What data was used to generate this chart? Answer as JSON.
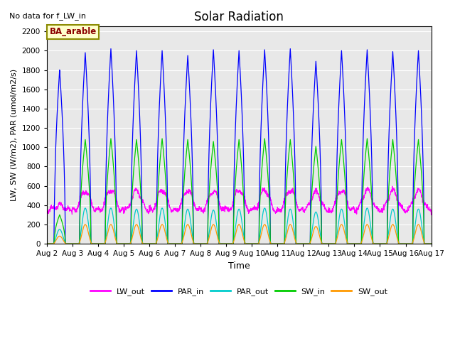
{
  "title": "Solar Radiation",
  "xlabel": "Time",
  "ylabel": "LW, SW (W/m2), PAR (umol/m2/s)",
  "note": "No data for f_LW_in",
  "legend_label": "BA_arable",
  "xmin_day": 2,
  "xmax_day": 17,
  "ylim": [
    0,
    2250
  ],
  "yticks": [
    0,
    200,
    400,
    600,
    800,
    1000,
    1200,
    1400,
    1600,
    1800,
    2000,
    2200
  ],
  "xtick_days": [
    2,
    3,
    4,
    5,
    6,
    7,
    8,
    9,
    10,
    11,
    12,
    13,
    14,
    15,
    16,
    17
  ],
  "xtick_labels": [
    "Aug 2",
    "Aug 3",
    "Aug 4",
    "Aug 5",
    "Aug 6",
    "Aug 7",
    "Aug 8",
    "Aug 9",
    "Aug 10",
    "Aug 11",
    "Aug 12",
    "Aug 13",
    "Aug 14",
    "Aug 15",
    "Aug 16",
    "Aug 17"
  ],
  "colors": {
    "LW_out": "#ff00ff",
    "PAR_in": "#0000ff",
    "PAR_out": "#00cccc",
    "SW_in": "#00cc00",
    "SW_out": "#ff9900"
  },
  "bg_color": "#e8e8e8",
  "grid_color": "#ffffff",
  "par_in_peaks": [
    1800,
    1980,
    2020,
    2000,
    2000,
    1950,
    2010,
    2000,
    2010,
    2020,
    1890,
    2000,
    2010,
    1990,
    2000
  ],
  "sw_in_peaks": [
    300,
    1080,
    1090,
    1080,
    1090,
    1080,
    1060,
    1080,
    1090,
    1080,
    1010,
    1080,
    1090,
    1080,
    1080
  ],
  "sw_out_peaks": [
    80,
    200,
    200,
    200,
    200,
    200,
    200,
    200,
    200,
    200,
    180,
    200,
    200,
    200,
    200
  ],
  "par_out_peaks": [
    150,
    370,
    370,
    360,
    370,
    360,
    350,
    360,
    370,
    360,
    330,
    360,
    370,
    360,
    360
  ],
  "lw_out_day_peaks": [
    400,
    540,
    560,
    555,
    560,
    555,
    545,
    555,
    555,
    555,
    540,
    555,
    555,
    550,
    550
  ],
  "lw_out_night": 350
}
